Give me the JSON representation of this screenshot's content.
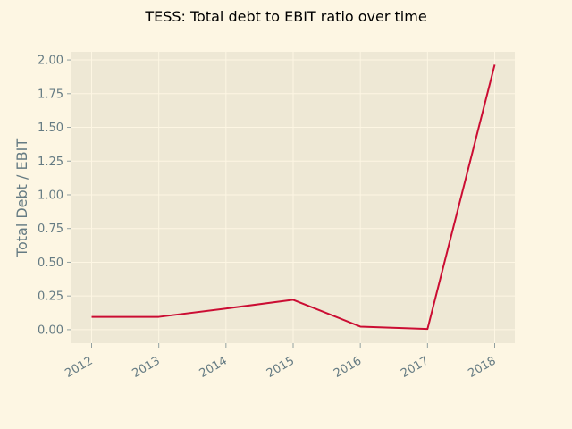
{
  "chart_data": {
    "type": "line",
    "title": "TESS: Total debt to EBIT ratio over time",
    "xlabel": "",
    "ylabel": "Total Debt / EBIT",
    "x": [
      "2012",
      "2013",
      "2014",
      "2015",
      "2016",
      "2017",
      "2018"
    ],
    "series": [
      {
        "values": [
          0.095,
          0.095,
          0.157,
          0.222,
          0.023,
          0.005,
          1.965
        ]
      }
    ],
    "yticks": [
      "0.00",
      "0.25",
      "0.50",
      "0.75",
      "1.00",
      "1.25",
      "1.50",
      "1.75",
      "2.00"
    ],
    "ylim": [
      -0.1,
      2.06
    ],
    "grid": true,
    "legend": "none"
  },
  "colors": {
    "background": "#fdf6e3",
    "plot_background": "#eee8d5",
    "series_line": "#cb0d33",
    "tick_text": "#657b83"
  }
}
